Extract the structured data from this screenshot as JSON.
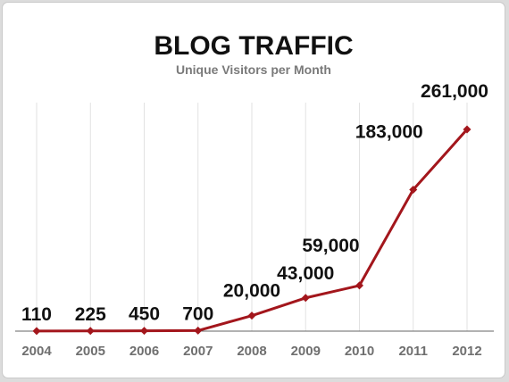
{
  "colors": {
    "line": "#a3161c",
    "grid": "#e2e2e2",
    "axis": "#666666",
    "background": "#ffffff"
  },
  "chart_data": {
    "type": "line",
    "title": "BLOG TRAFFIC",
    "subtitle": "Unique Visitors per Month",
    "xlabel": "",
    "ylabel": "",
    "categories": [
      "2004",
      "2005",
      "2006",
      "2007",
      "2008",
      "2009",
      "2010",
      "2011",
      "2012"
    ],
    "series": [
      {
        "values": [
          110,
          225,
          450,
          700,
          20000,
          43000,
          59000,
          183000,
          261000
        ],
        "labels": [
          "110",
          "225",
          "450",
          "700",
          "20,000",
          "43,000",
          "59,000",
          "183,000",
          "261,000"
        ]
      }
    ],
    "ylim": [
      0,
      261000
    ],
    "grid": "vertical",
    "legend": "none"
  }
}
